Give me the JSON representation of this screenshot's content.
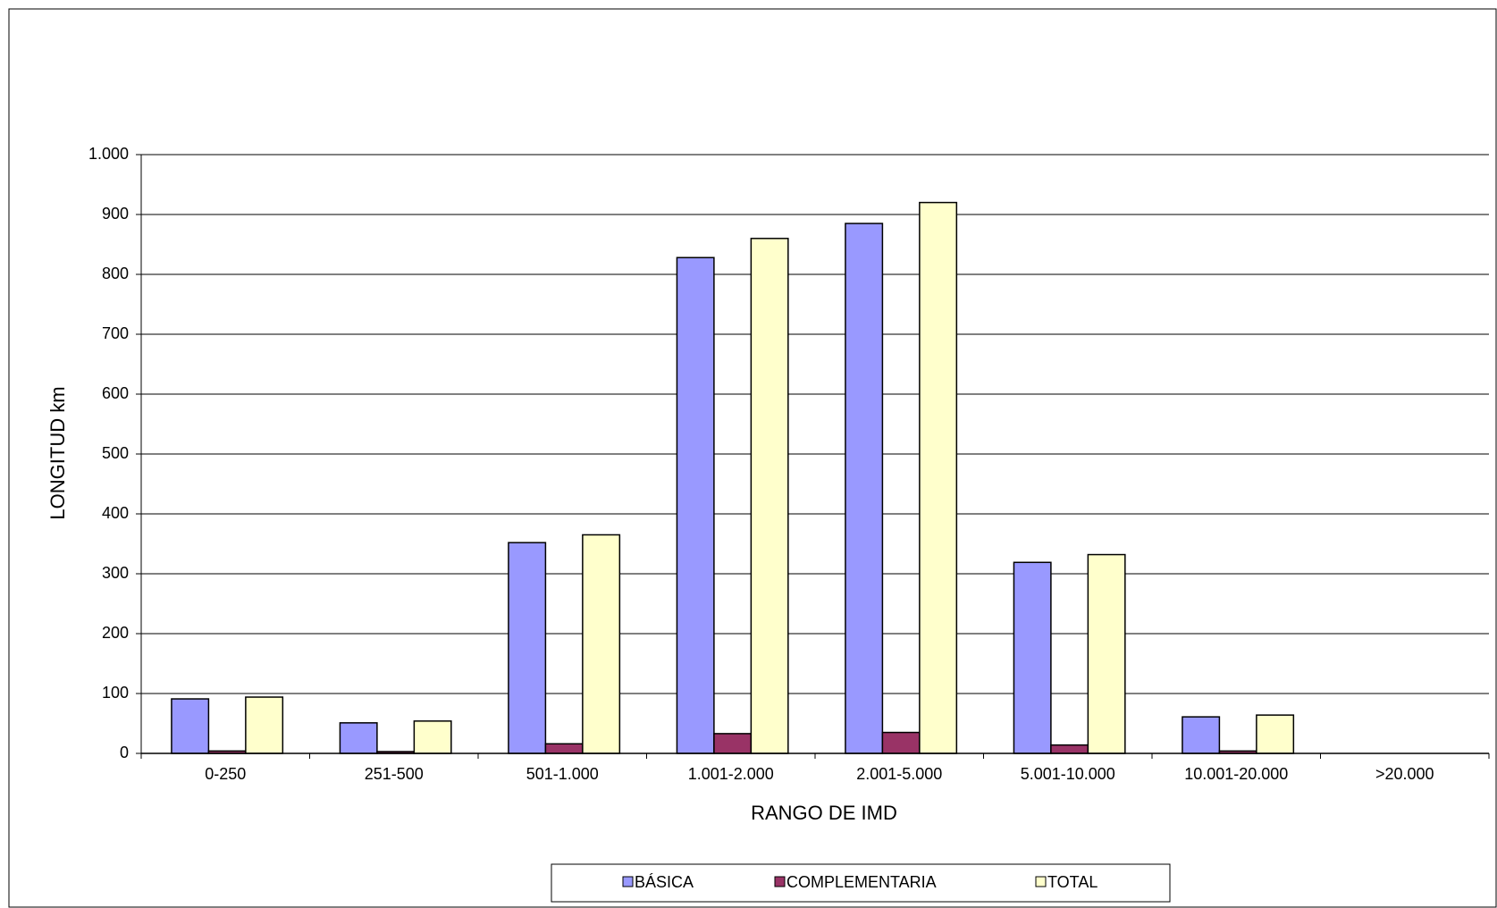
{
  "chart_data": {
    "type": "bar",
    "xlabel": "RANGO DE IMD",
    "ylabel": "LONGITUD km",
    "categories": [
      "0-250",
      "251-500",
      "501-1.000",
      "1.001-2.000",
      "2.001-5.000",
      "5.001-10.000",
      "10.001-20.000",
      ">20.000"
    ],
    "series": [
      {
        "name": "BÁSICA",
        "color": "#9999ff",
        "values": [
          91,
          51,
          352,
          828,
          885,
          319,
          61,
          null
        ]
      },
      {
        "name": "COMPLEMENTARIA",
        "color": "#993366",
        "values": [
          4,
          3,
          16,
          33,
          35,
          14,
          4,
          null
        ]
      },
      {
        "name": "TOTAL",
        "color": "#ffffcc",
        "values": [
          94,
          54,
          365,
          860,
          920,
          332,
          64,
          null
        ]
      }
    ],
    "ylim": [
      0,
      1000
    ],
    "yticks": [
      0,
      100,
      200,
      300,
      400,
      500,
      600,
      700,
      800,
      900,
      {
        "value": 1000,
        "label": "1.000"
      }
    ],
    "grid": true,
    "legend": "bottom"
  }
}
